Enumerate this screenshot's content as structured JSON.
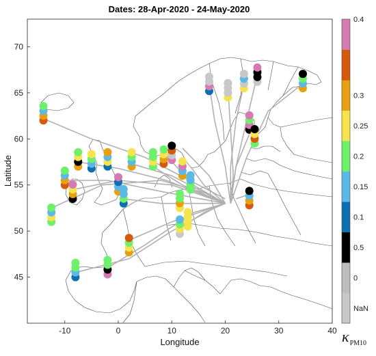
{
  "chart_data": {
    "type": "scatter",
    "title": "Dates: 28-Apr-2020 - 24-May-2020",
    "xlabel": "Longitude",
    "ylabel": "Latitude",
    "xlim": [
      -17,
      40
    ],
    "ylim": [
      40,
      73
    ],
    "xticks": [
      "-10",
      "0",
      "10",
      "20",
      "30",
      "40"
    ],
    "yticks": [
      "45",
      "50",
      "55",
      "60",
      "65",
      "70"
    ],
    "colorbar": {
      "label": "κ",
      "label_sub": "PM10",
      "tick_labels": [
        "NaN",
        "0",
        "0.5",
        "0.1",
        "0.15",
        "0.2",
        "0.25",
        "0.3",
        "0.4"
      ],
      "colors": [
        "#c8c8c8",
        "#bdbdbd",
        "#000000",
        "#0c6fb0",
        "#5cb8e6",
        "#6df06a",
        "#f7e34d",
        "#e8a010",
        "#d55a0e",
        "#d57ab3"
      ]
    },
    "markers": [
      {
        "lon": -14.0,
        "lat": 62.0,
        "colors": [
          "#d55a0e",
          "#e8a010",
          "#5cb8e6",
          "#6df06a"
        ]
      },
      {
        "lon": -12.5,
        "lat": 51.0,
        "colors": [
          "#6df06a",
          "#f7e34d",
          "#5cb8e6",
          "#6df06a"
        ]
      },
      {
        "lon": -10.0,
        "lat": 55.0,
        "colors": [
          "#d55a0e",
          "#e8a010",
          "#5cb8e6",
          "#6df06a"
        ]
      },
      {
        "lon": -8.5,
        "lat": 53.5,
        "colors": [
          "#000000",
          "#e8a010",
          "#f7e34d",
          "#d57ab3"
        ]
      },
      {
        "lon": -7.5,
        "lat": 57.0,
        "colors": [
          "#e8a010",
          "#000000",
          "#f7e34d",
          "#6df06a"
        ]
      },
      {
        "lon": -5.0,
        "lat": 56.8,
        "colors": [
          "#0c6fb0",
          "#5cb8e6",
          "#6df06a",
          "#f7e34d"
        ]
      },
      {
        "lon": -2.0,
        "lat": 57.0,
        "colors": [
          "#0c6fb0",
          "#f7e34d",
          "#5cb8e6",
          "#e8a010"
        ]
      },
      {
        "lon": -8.0,
        "lat": 45.0,
        "colors": [
          "#0c6fb0",
          "#5cb8e6",
          "#6df06a",
          "#6df06a"
        ]
      },
      {
        "lon": -2.0,
        "lat": 45.3,
        "colors": [
          "#d57ab3",
          "#000000",
          "#6df06a",
          "#6df06a"
        ]
      },
      {
        "lon": 0.0,
        "lat": 54.3,
        "colors": [
          "#e8a010",
          "#5cb8e6",
          "#0c6fb0",
          "#d57ab3"
        ]
      },
      {
        "lon": 1.0,
        "lat": 53.0,
        "colors": [
          "#0c6fb0",
          "#6df06a",
          "#5cb8e6",
          "#5cb8e6"
        ]
      },
      {
        "lon": 2.5,
        "lat": 57.0,
        "colors": [
          "#e8a010",
          "#5cb8e6",
          "#6df06a",
          "#f7e34d"
        ]
      },
      {
        "lon": 2.0,
        "lat": 47.7,
        "colors": [
          "#e8a010",
          "#f7e34d",
          "#6df06a",
          "#d55a0e"
        ]
      },
      {
        "lon": 6.5,
        "lat": 57.0,
        "colors": [
          "#6df06a",
          "#f7e34d",
          "#6df06a",
          "#6df06a"
        ]
      },
      {
        "lon": 8.5,
        "lat": 57.3,
        "colors": [
          "#d55a0e",
          "#e8a010",
          "#f7e34d",
          "#6df06a"
        ]
      },
      {
        "lon": 10.0,
        "lat": 57.7,
        "colors": [
          "#d57ab3",
          "#c8c8c8",
          "#d55a0e",
          "#000000"
        ]
      },
      {
        "lon": 12.0,
        "lat": 56.0,
        "colors": [
          "#e8a010",
          "#5cb8e6",
          "#d57ab3",
          "#f7e34d"
        ]
      },
      {
        "lon": 13.5,
        "lat": 54.5,
        "colors": [
          "#6df06a",
          "#6df06a",
          "#5cb8e6",
          "#5cb8e6"
        ]
      },
      {
        "lon": 11.5,
        "lat": 52.5,
        "colors": [
          "#f7e34d",
          "#e8a010",
          "#6df06a",
          "#6df06a"
        ]
      },
      {
        "lon": 11.5,
        "lat": 49.7,
        "colors": [
          "#c8c8c8",
          "#f7e34d",
          "#6df06a",
          "#5cb8e6"
        ]
      },
      {
        "lon": 13.0,
        "lat": 50.5,
        "colors": [
          "#f7e34d",
          "#f7e34d",
          "#f7e34d",
          "#f7e34d"
        ]
      },
      {
        "lon": 17.0,
        "lat": 65.2,
        "colors": [
          "#0c6fb0",
          "#d57ab3",
          "#c8c8c8",
          "#c8c8c8"
        ]
      },
      {
        "lon": 20.5,
        "lat": 64.5,
        "colors": [
          "#f7e34d",
          "#c8c8c8",
          "#c8c8c8",
          "#c8c8c8"
        ]
      },
      {
        "lon": 23.5,
        "lat": 65.5,
        "colors": [
          "#f7e34d",
          "#c8c8c8",
          "#5cb8e6",
          "#c8c8c8"
        ]
      },
      {
        "lon": 26.0,
        "lat": 66.2,
        "colors": [
          "#c8c8c8",
          "#000000",
          "#000000",
          "#d57ab3"
        ]
      },
      {
        "lon": 34.5,
        "lat": 65.5,
        "colors": [
          "#e8a010",
          "#5cb8e6",
          "#6df06a",
          "#000000"
        ]
      },
      {
        "lon": 24.5,
        "lat": 61.0,
        "colors": [
          "#000000",
          "#d57ab3",
          "#6df06a",
          "#d57ab3"
        ]
      },
      {
        "lon": 25.5,
        "lat": 59.5,
        "colors": [
          "#6df06a",
          "#d55a0e",
          "#f7e34d",
          "#000000"
        ]
      },
      {
        "lon": 24.5,
        "lat": 52.8,
        "colors": [
          "#d55a0e",
          "#e8a010",
          "#5cb8e6",
          "#000000"
        ]
      }
    ],
    "trajectories": [
      [
        [
          -14,
          62.2
        ],
        [
          -5,
          60
        ],
        [
          5,
          58
        ],
        [
          15,
          55
        ],
        [
          20,
          53.5
        ]
      ],
      [
        [
          -12.5,
          52.5
        ],
        [
          -3,
          55
        ],
        [
          8,
          55.5
        ],
        [
          17,
          54
        ],
        [
          20,
          53
        ]
      ],
      [
        [
          -10,
          55.5
        ],
        [
          -2,
          55.5
        ],
        [
          8,
          54.3
        ],
        [
          20,
          53
        ]
      ],
      [
        [
          -8.5,
          54.5
        ],
        [
          0,
          55.5
        ],
        [
          10,
          55
        ],
        [
          20,
          53
        ]
      ],
      [
        [
          -7.5,
          57.5
        ],
        [
          0,
          56.8
        ],
        [
          9,
          55.5
        ],
        [
          20,
          53
        ]
      ],
      [
        [
          -8,
          45.5
        ],
        [
          2,
          47
        ],
        [
          10,
          50
        ],
        [
          18,
          52.5
        ],
        [
          20,
          53
        ]
      ],
      [
        [
          -2,
          46
        ],
        [
          5,
          48.5
        ],
        [
          14,
          52
        ],
        [
          20,
          53
        ]
      ],
      [
        [
          1,
          53.5
        ],
        [
          8,
          53
        ],
        [
          15,
          53
        ],
        [
          20,
          53
        ]
      ],
      [
        [
          2.5,
          57.3
        ],
        [
          10,
          56
        ],
        [
          20,
          53
        ]
      ],
      [
        [
          2,
          49
        ],
        [
          10,
          51
        ],
        [
          20,
          53
        ]
      ],
      [
        [
          6.5,
          57
        ],
        [
          12,
          55
        ],
        [
          20,
          53
        ]
      ],
      [
        [
          8.5,
          58.5
        ],
        [
          14,
          55
        ],
        [
          20,
          53
        ]
      ],
      [
        [
          11.5,
          50.3
        ],
        [
          16,
          52
        ],
        [
          20,
          53
        ]
      ],
      [
        [
          17,
          66
        ],
        [
          18,
          62
        ],
        [
          20,
          57
        ],
        [
          21,
          53
        ]
      ],
      [
        [
          20.5,
          65.5
        ],
        [
          21,
          61
        ],
        [
          21.5,
          56
        ],
        [
          21,
          53
        ]
      ],
      [
        [
          23.5,
          66
        ],
        [
          22,
          62
        ],
        [
          21,
          57
        ],
        [
          21,
          53
        ]
      ],
      [
        [
          26,
          67
        ],
        [
          24,
          62
        ],
        [
          22,
          57
        ],
        [
          21,
          53
        ]
      ],
      [
        [
          34.5,
          66
        ],
        [
          28,
          63
        ],
        [
          24,
          58
        ],
        [
          21,
          53
        ]
      ],
      [
        [
          24.5,
          60.5
        ],
        [
          22,
          57
        ],
        [
          21,
          53
        ]
      ],
      [
        [
          24.5,
          54
        ],
        [
          22,
          53.5
        ]
      ],
      [
        [
          13.5,
          57
        ],
        [
          16,
          55
        ],
        [
          20,
          53
        ]
      ],
      [
        [
          12,
          59
        ],
        [
          17,
          56
        ],
        [
          20,
          53
        ]
      ]
    ]
  }
}
